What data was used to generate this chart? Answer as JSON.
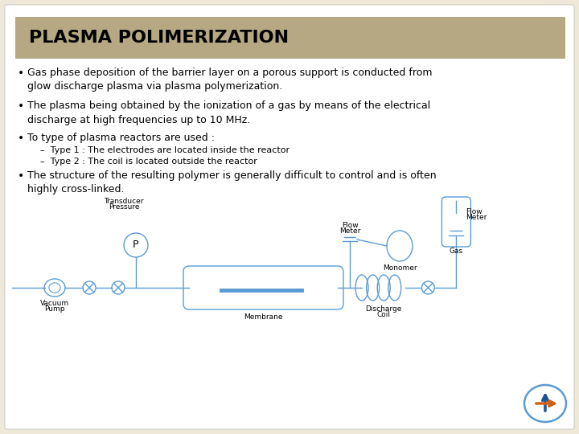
{
  "title": "PLASMA POLIMERIZATION",
  "title_bg_color": "#b5a882",
  "title_text_color": "#000000",
  "slide_bg_color": "#ede8d8",
  "white_bg": "#ffffff",
  "diagram_color": "#5b9bd5",
  "bullets": [
    "Gas phase deposition of the barrier layer on a porous support is conducted from\nglow discharge plasma via plasma polymerization.",
    "The plasma being obtained by the ionization of a gas by means of the electrical\ndischarge at high frequencies up to 10 MHz.",
    "To type of plasma reactors are used :",
    "The structure of the resulting polymer is generally difficult to control and is often\nhighly cross-linked."
  ],
  "sub_bullets": [
    "–  Type 1 : The electrodes are located inside the reactor",
    "–  Type 2 : The coil is located outside the reactor"
  ],
  "font_size": 9.0,
  "sub_font_size": 8.0,
  "title_fontsize": 16
}
